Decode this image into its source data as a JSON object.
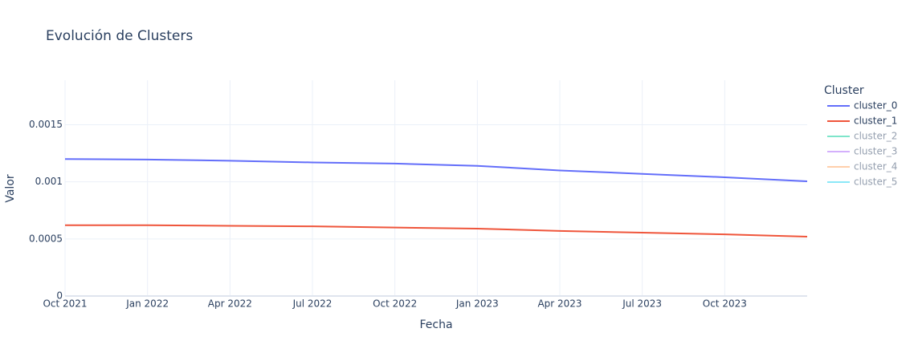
{
  "chart_data": {
    "type": "line",
    "title": "Evolución de Clusters",
    "x_label": "Fecha",
    "y_label": "Valor",
    "legend_title": "Cluster",
    "legend": "right",
    "x": [
      "2021-10",
      "2022-01",
      "2022-04",
      "2022-07",
      "2022-10",
      "2023-01",
      "2023-04",
      "2023-07",
      "2023-10",
      "2024-01"
    ],
    "series": [
      {
        "name": "cluster_0",
        "color": "#636efa",
        "values": [
          0.0012,
          0.001195,
          0.001185,
          0.00117,
          0.00116,
          0.00114,
          0.0011,
          0.00107,
          0.00104,
          0.001005
        ]
      },
      {
        "name": "cluster_1",
        "color": "#EF553B",
        "values": [
          0.00062,
          0.00062,
          0.000615,
          0.00061,
          0.0006,
          0.00059,
          0.00057,
          0.000555,
          0.00054,
          0.00052
        ]
      },
      {
        "name": "cluster_2",
        "color": "#00cc96",
        "visible": "legendonly"
      },
      {
        "name": "cluster_3",
        "color": "#ab63fa",
        "visible": "legendonly"
      },
      {
        "name": "cluster_4",
        "color": "#FFA15A",
        "visible": "legendonly"
      },
      {
        "name": "cluster_5",
        "color": "#19d3f3",
        "visible": "legendonly"
      }
    ],
    "xlim": [
      "2021-10",
      "2024-01"
    ],
    "xticks": [
      {
        "value": "2021-10",
        "label": "Oct 2021"
      },
      {
        "value": "2022-01",
        "label": "Jan 2022"
      },
      {
        "value": "2022-04",
        "label": "Apr 2022"
      },
      {
        "value": "2022-07",
        "label": "Jul 2022"
      },
      {
        "value": "2022-10",
        "label": "Oct 2022"
      },
      {
        "value": "2023-01",
        "label": "Jan 2023"
      },
      {
        "value": "2023-04",
        "label": "Apr 2023"
      },
      {
        "value": "2023-07",
        "label": "Jul 2023"
      },
      {
        "value": "2023-10",
        "label": "Oct 2023"
      }
    ],
    "ylim": [
      0,
      0.00189
    ],
    "yticks": [
      0,
      0.0005,
      0.001,
      0.0015
    ],
    "grid": true
  }
}
